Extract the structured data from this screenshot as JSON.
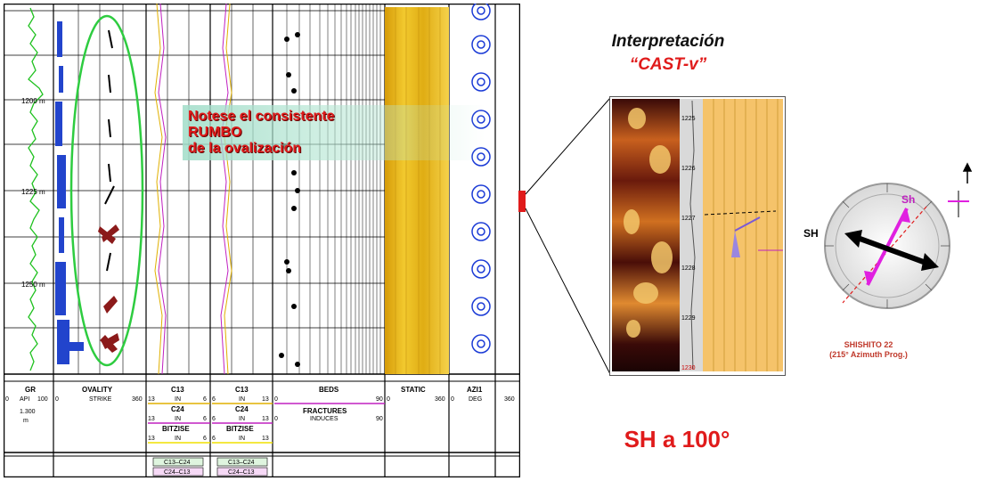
{
  "log": {
    "depths": [
      "1200 m",
      "1225 m",
      "1250 m"
    ],
    "tracks": [
      {
        "name": "GR",
        "unit": "API",
        "range_min": "0",
        "range_max": "100"
      },
      {
        "name": "OVALITY",
        "unit": "STRIKE",
        "range_min": "0",
        "range_max": "360"
      },
      {
        "name": "C13",
        "unit": "IN",
        "range_min": "13",
        "range_max": "6"
      },
      {
        "name": "C13",
        "unit": "IN",
        "range_min": "6",
        "range_max": "13"
      },
      {
        "name": "BEDS",
        "unit": "",
        "range_min": "0",
        "range_max": "90"
      },
      {
        "name": "STATIC",
        "unit": "",
        "range_min": "0",
        "range_max": "360"
      },
      {
        "name": "AZI1",
        "unit": "DEG",
        "range_min": "0",
        "range_max": "360"
      }
    ],
    "gr_extra": [
      "1.300",
      "m"
    ],
    "c24_left": {
      "name": "C24",
      "unit": "IN",
      "range_min": "13",
      "range_max": "6"
    },
    "c24_right": {
      "name": "C24",
      "unit": "IN",
      "range_min": "6",
      "range_max": "13"
    },
    "bitsize_left": {
      "name": "BITZISE",
      "unit": "IN",
      "range_min": "13",
      "range_max": "6"
    },
    "bitsize_right": {
      "name": "BITZISE",
      "unit": "IN",
      "range_min": "6",
      "range_max": "13"
    },
    "fractures": {
      "name": "FRACTURES",
      "unit": "INDUCES",
      "range_min": "0",
      "range_max": "90"
    },
    "fill_labels_left": [
      "C13–C24",
      "C24–C13"
    ],
    "fill_labels_right": [
      "C13–C24",
      "C24–C13"
    ]
  },
  "note": {
    "lines": [
      "Notese el consistente",
      "RUMBO",
      "de la ovalización"
    ]
  },
  "interpretation": {
    "title": "Interpretación",
    "subtitle": "“CAST-v”",
    "depth_marks": [
      "1225",
      "1226",
      "1227",
      "1228",
      "1229",
      "1230"
    ]
  },
  "compass": {
    "sh_label": "Sh",
    "SH_label": "SH",
    "caption_line1": "SHISHITO 22",
    "caption_line2": "(215° Azimuth Prog.)"
  },
  "result": "SH a 100°",
  "colors": {
    "accent_red": "#e01b1b",
    "ellipse_green": "#2ecc40",
    "sh_magenta": "#e020e0"
  }
}
